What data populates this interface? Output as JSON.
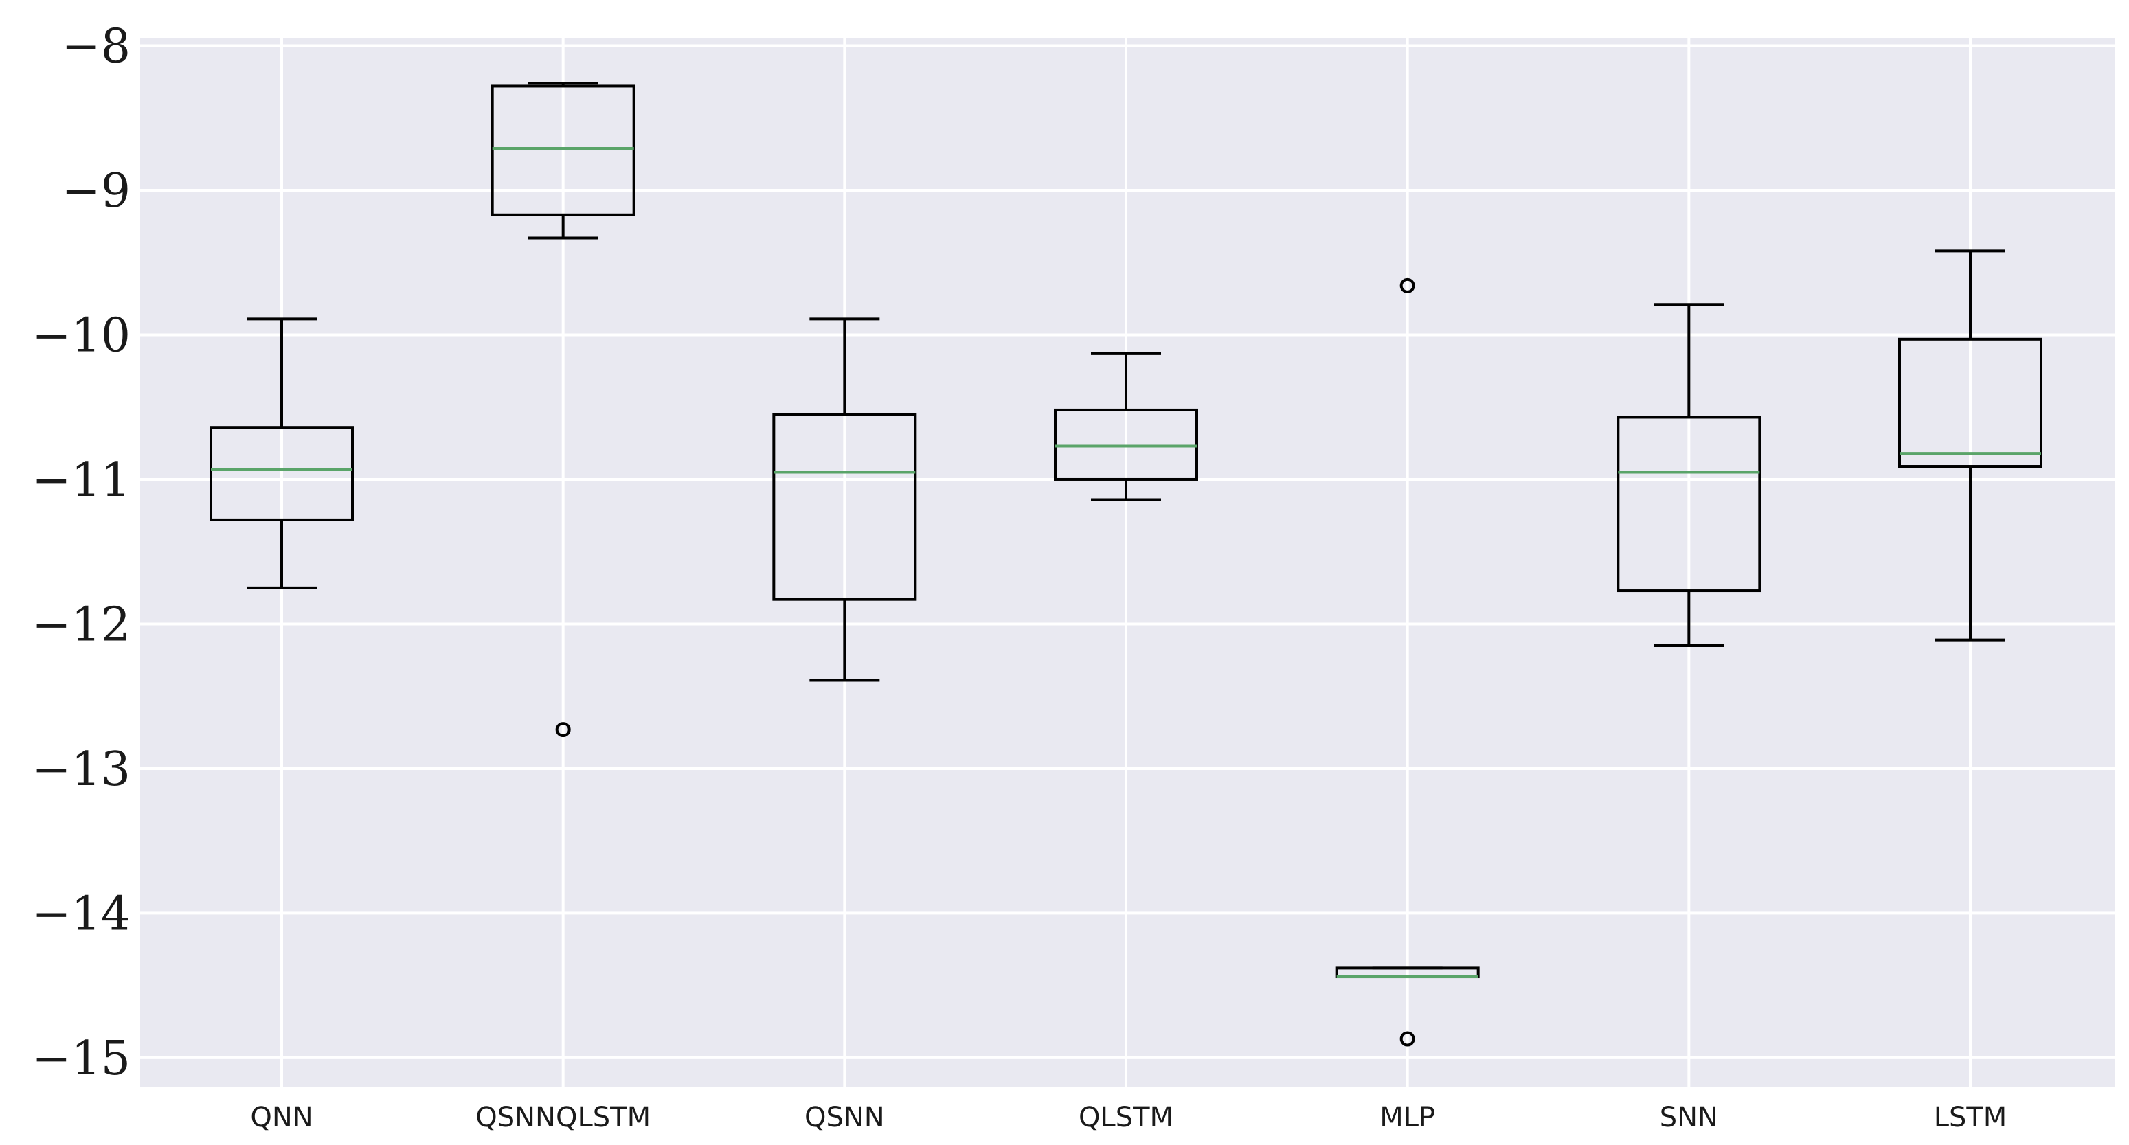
{
  "chart_data": {
    "type": "box",
    "title": "",
    "xlabel": "",
    "ylabel": "",
    "ylim": [
      -15.2,
      -7.95
    ],
    "yticks": [
      -8,
      -9,
      -10,
      -11,
      -12,
      -13,
      -14,
      -15
    ],
    "ytick_labels": [
      "−8",
      "−9",
      "−10",
      "−11",
      "−12",
      "−13",
      "−14",
      "−15"
    ],
    "grid": true,
    "categories": [
      "QNN",
      "QSNNQLSTM",
      "QSNN",
      "QLSTM",
      "MLP",
      "SNN",
      "LSTM"
    ],
    "boxes": [
      {
        "category": "QNN",
        "whislo": -11.75,
        "q1": -11.28,
        "med": -10.93,
        "q3": -10.64,
        "whishi": -9.89,
        "fliers": []
      },
      {
        "category": "QSNNQLSTM",
        "whislo": -9.33,
        "q1": -9.17,
        "med": -8.71,
        "q3": -8.28,
        "whishi": -8.26,
        "fliers": [
          -12.73
        ]
      },
      {
        "category": "QSNN",
        "whislo": -12.39,
        "q1": -11.83,
        "med": -10.95,
        "q3": -10.55,
        "whishi": -9.89,
        "fliers": []
      },
      {
        "category": "QLSTM",
        "whislo": -11.14,
        "q1": -11.0,
        "med": -10.77,
        "q3": -10.52,
        "whishi": -10.13,
        "fliers": []
      },
      {
        "category": "MLP",
        "whislo": -14.44,
        "q1": -14.44,
        "med": -14.44,
        "q3": -14.38,
        "whishi": -14.38,
        "fliers": [
          -9.66,
          -14.87
        ]
      },
      {
        "category": "SNN",
        "whislo": -12.15,
        "q1": -11.77,
        "med": -10.95,
        "q3": -10.57,
        "whishi": -9.79,
        "fliers": []
      },
      {
        "category": "LSTM",
        "whislo": -12.11,
        "q1": -10.91,
        "med": -10.82,
        "q3": -10.03,
        "whishi": -9.42,
        "fliers": []
      }
    ],
    "colors": {
      "background": "#e9e9f1",
      "grid": "#ffffff",
      "box": "#000000",
      "median": "#5aa469"
    }
  }
}
